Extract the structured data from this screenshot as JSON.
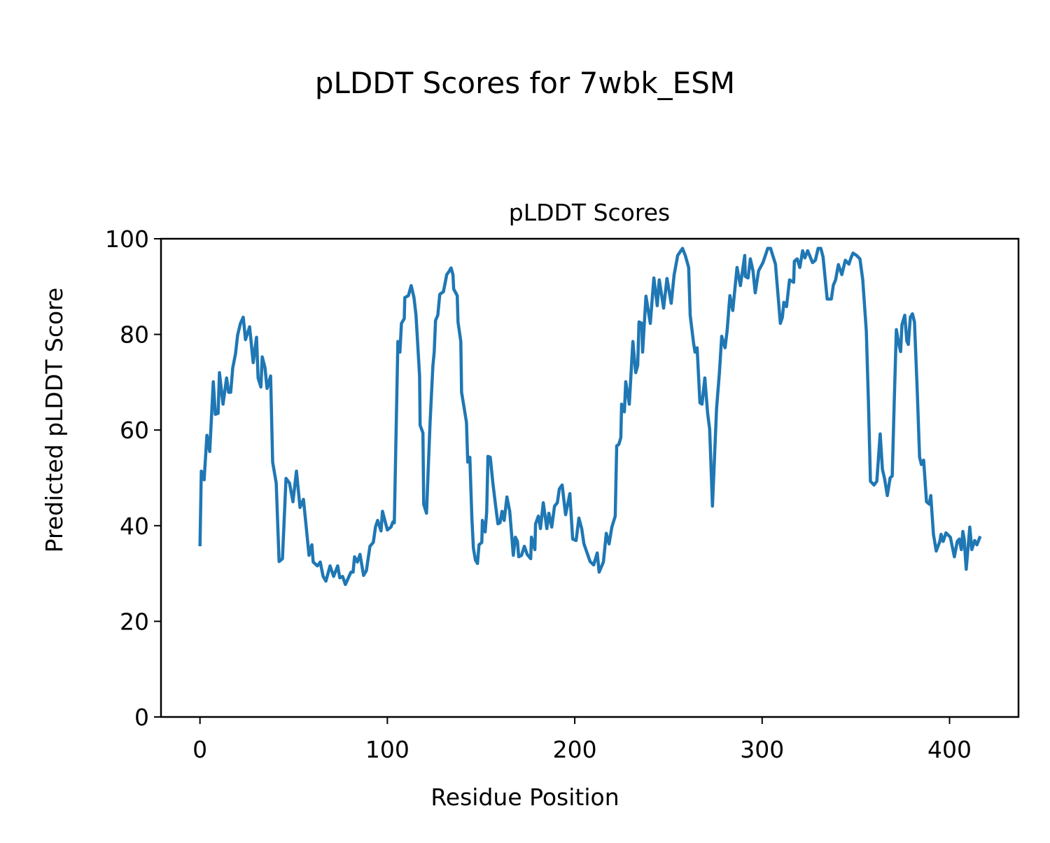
{
  "figure": {
    "title": "pLDDT Scores for 7wbk_ESM"
  },
  "chart_data": {
    "type": "line",
    "title": "pLDDT Scores",
    "xlabel": "Residue Position",
    "ylabel": "Predicted pLDDT Score",
    "xlim": [
      -20.8,
      436.8
    ],
    "ylim": [
      0,
      100
    ],
    "xticks": [
      0,
      100,
      200,
      300,
      400
    ],
    "yticks": [
      0,
      20,
      40,
      60,
      80,
      100
    ],
    "grid": false,
    "line_color": "#1f77b4",
    "x": [
      0,
      0.7,
      2.2,
      3.7,
      5.2,
      7.1,
      8.2,
      9.7,
      10.4,
      12.3,
      14.2,
      15.3,
      16.4,
      17.5,
      19,
      20.1,
      21.6,
      23.1,
      24.3,
      26.5,
      28.4,
      30.2,
      31,
      32.5,
      33.2,
      34.7,
      35.8,
      37.7,
      38.8,
      40.7,
      42.2,
      44,
      45.9,
      47.8,
      49.6,
      51.5,
      53.4,
      55.2,
      58.2,
      59.7,
      60.4,
      62.7,
      64.2,
      65.7,
      67.2,
      69.4,
      71.3,
      73.5,
      74.6,
      76.1,
      77.6,
      80.6,
      81.7,
      82.5,
      84,
      85.4,
      87.3,
      88.8,
      90.7,
      92.5,
      93.7,
      94.8,
      96.6,
      97.4,
      100,
      101.9,
      103,
      103.7,
      105.6,
      106.7,
      107.5,
      109,
      109.3,
      111.2,
      112.7,
      114.2,
      115.3,
      117.2,
      117.5,
      119,
      119.4,
      120.9,
      122.8,
      124.3,
      125,
      125.7,
      126.9,
      128,
      129.9,
      130.6,
      131.7,
      132.8,
      134,
      135,
      135.4,
      137.3,
      137.7,
      139.2,
      139.6,
      141,
      142.2,
      142.9,
      144,
      145.1,
      145.9,
      147,
      148.1,
      148.9,
      150.4,
      150.7,
      152.2,
      153,
      153.7,
      154.9,
      156.3,
      157.8,
      159,
      160.1,
      161.2,
      162.3,
      163.8,
      165.3,
      167.2,
      168.3,
      169.4,
      170.1,
      171.6,
      173.1,
      174.6,
      176.5,
      176.9,
      178.7,
      179.1,
      180.6,
      181.7,
      183.2,
      185.1,
      186.2,
      187.7,
      189.2,
      190.7,
      191.8,
      193.3,
      195.1,
      197.4,
      198.9,
      200.7,
      202.2,
      203.7,
      204.9,
      208.2,
      210.1,
      212,
      213,
      215.3,
      216.8,
      218.3,
      219.8,
      221.6,
      222.4,
      223.5,
      224.6,
      225,
      226.5,
      227.2,
      229.1,
      231,
      232.5,
      233.6,
      234.3,
      235.8,
      236.2,
      238,
      240.3,
      242.2,
      244,
      245.1,
      247.4,
      249.2,
      251.5,
      253,
      254.9,
      257.5,
      259,
      260.8,
      261.6,
      263.4,
      264.2,
      265.3,
      266.8,
      267.9,
      269.4,
      270.9,
      272,
      273.5,
      275.7,
      277.2,
      278.4,
      280.2,
      281.3,
      282.8,
      284.3,
      286.6,
      288.4,
      290.7,
      291,
      292.5,
      293.7,
      295.1,
      296.3,
      298.1,
      300.4,
      303,
      304.5,
      307.1,
      309.7,
      310.8,
      311.6,
      313,
      314.6,
      316.8,
      317.2,
      318.7,
      320.1,
      321.6,
      322.8,
      324.3,
      326.9,
      328.4,
      329.9,
      331.3,
      332.5,
      334.7,
      335.4,
      336.9,
      338,
      339.2,
      340.7,
      342.5,
      344.4,
      346.3,
      347.4,
      348.5,
      350.4,
      352.2,
      353.7,
      355.6,
      356.7,
      357.8,
      359.7,
      361.2,
      363,
      364.2,
      365.3,
      366.8,
      368.3,
      369.4,
      370.5,
      371.6,
      372.8,
      373.9,
      374.6,
      376.1,
      377.2,
      378,
      379.1,
      380.2,
      381.3,
      382.8,
      384,
      385,
      386.2,
      387.7,
      389.2,
      390,
      391.4,
      392.9,
      394.8,
      395.5,
      396.6,
      398.1,
      400.4,
      402.6,
      404.1,
      405.2,
      406.3,
      407.1,
      407.8,
      408.9,
      410.8,
      411.9,
      413.4,
      414.6,
      416.4
    ],
    "y": [
      35.7,
      51.4,
      49.6,
      58.9,
      55.5,
      70.1,
      63.3,
      63.5,
      72,
      65.4,
      70.9,
      67.9,
      67.9,
      73,
      76,
      79.9,
      82.3,
      83.6,
      78.9,
      81.6,
      74.1,
      79.4,
      70.9,
      69,
      75.3,
      73,
      68.7,
      71.3,
      53.3,
      48.9,
      32.5,
      33.1,
      49.9,
      48.9,
      45,
      51.4,
      43.8,
      45.5,
      33.8,
      36,
      32.4,
      31.6,
      32.4,
      29.4,
      28.4,
      31.6,
      29.4,
      31.6,
      29.1,
      29.4,
      27.7,
      30.3,
      30.3,
      33.5,
      32.4,
      34,
      29.6,
      30.6,
      35.7,
      36.5,
      39.8,
      41.1,
      38.9,
      43,
      39.1,
      39.7,
      40.8,
      40.6,
      78.5,
      76.3,
      82.3,
      83.3,
      87.7,
      88.1,
      90.2,
      87.7,
      84,
      71.3,
      61,
      59.4,
      44.5,
      42.6,
      61.6,
      73.4,
      76.3,
      82.9,
      84,
      88.4,
      88.9,
      90.3,
      92.5,
      93.1,
      93.9,
      92.5,
      89.5,
      88.1,
      82.6,
      78.5,
      67.9,
      64.6,
      61.6,
      53.3,
      54.3,
      41.6,
      35.3,
      32.8,
      32.1,
      36,
      36.5,
      41.1,
      38.7,
      43,
      54.5,
      54.3,
      48.9,
      44.1,
      40.4,
      40.6,
      43,
      41.1,
      46,
      43,
      33.8,
      37.6,
      36.7,
      33.5,
      33.8,
      35.7,
      34,
      33.1,
      37.6,
      35,
      40.4,
      42,
      39.4,
      44.8,
      39.4,
      42.6,
      39.7,
      44.1,
      44.8,
      47.7,
      48.5,
      42.3,
      46.7,
      37.2,
      36.9,
      41.6,
      39.4,
      36.2,
      32.5,
      31.8,
      34.3,
      30.3,
      32.4,
      38.4,
      36.2,
      39.7,
      42,
      56.7,
      57,
      58.4,
      65.4,
      63.8,
      70.1,
      65.4,
      78.5,
      72,
      73.5,
      82.6,
      82.3,
      76.3,
      88,
      82.3,
      91.8,
      86,
      91.4,
      85.5,
      91.7,
      86.5,
      92.4,
      96.5,
      98,
      96.5,
      94,
      84,
      78.2,
      76.3,
      77.2,
      65.7,
      65.4,
      70.9,
      63.5,
      60.2,
      44.1,
      64.6,
      71.9,
      79.6,
      77.2,
      80.7,
      88.1,
      85,
      94,
      90.2,
      96.5,
      92.1,
      91.8,
      95.8,
      93.3,
      88.7,
      93.3,
      95,
      98,
      98,
      94.7,
      82.3,
      83.6,
      86.7,
      85.8,
      91.4,
      90.9,
      95.3,
      95.8,
      94,
      97.5,
      96,
      97.5,
      95,
      95.5,
      98,
      98,
      96.2,
      87.4,
      87.4,
      87.4,
      90.3,
      91.4,
      94.6,
      92.5,
      95.5,
      94.7,
      96,
      97,
      96.5,
      95.8,
      91.4,
      80.7,
      66,
      49.3,
      48.5,
      49.3,
      59.2,
      51.8,
      49.9,
      46.3,
      50,
      50.4,
      66,
      81,
      78.2,
      76.4,
      82,
      84,
      78.6,
      77.9,
      83.6,
      84.3,
      82.6,
      68,
      54.3,
      52.8,
      53.7,
      45,
      44.5,
      46.3,
      38.2,
      34.7,
      36.7,
      38.2,
      36.7,
      38.5,
      37.6,
      33.5,
      36.7,
      37.2,
      35,
      38.8,
      37.2,
      30.9,
      39.7,
      35,
      36.9,
      36,
      37.8
    ]
  }
}
